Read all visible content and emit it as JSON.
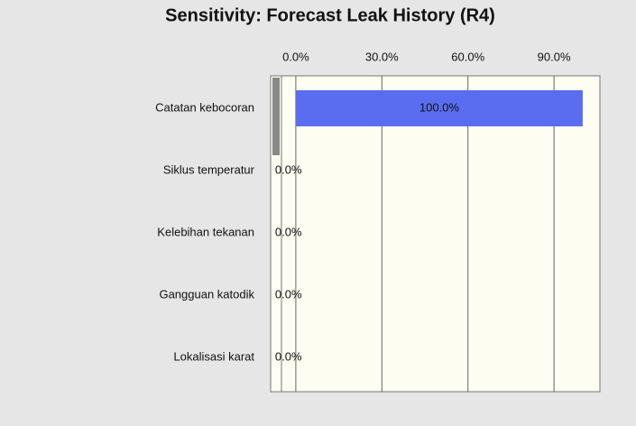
{
  "chart_data": {
    "type": "hbar",
    "title": "Sensitivity: Forecast Leak History (R4)",
    "categories": [
      "Catatan kebocoran",
      "Siklus temperatur",
      "Kelebihan tekanan",
      "Gangguan katodik",
      "Lokalisasi karat"
    ],
    "values": [
      100,
      0,
      0,
      0,
      0
    ],
    "value_labels": [
      "100.0%",
      "0.0%",
      "0.0%",
      "0.0%",
      "0.0%"
    ],
    "color": "#5a6cf0",
    "xlim": [
      -5,
      106
    ],
    "xticks": [
      {
        "value": 0,
        "label": "0.0%"
      },
      {
        "value": 30,
        "label": "30.0%"
      },
      {
        "value": 60,
        "label": "60.0%"
      },
      {
        "value": 90,
        "label": "90.0%"
      }
    ],
    "grid": true
  }
}
